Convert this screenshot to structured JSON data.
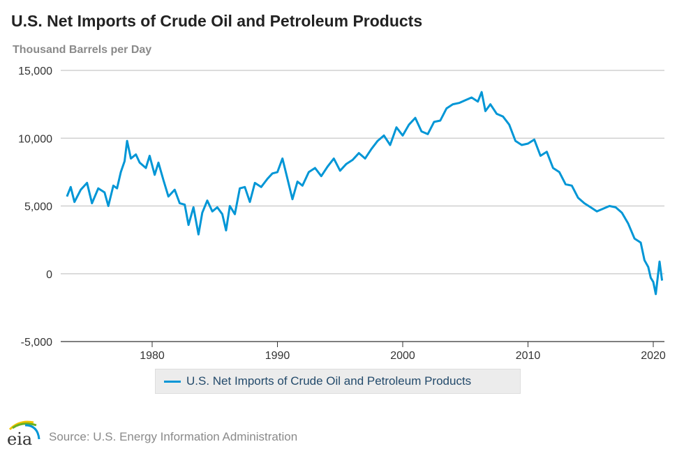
{
  "title": "U.S. Net Imports of Crude Oil and Petroleum Products",
  "source": "Source: U.S. Energy Information Administration",
  "logo_text": "eia",
  "chart_data": {
    "type": "line",
    "title": "U.S. Net Imports of Crude Oil and Petroleum Products",
    "ylabel": "Thousand Barrels per Day",
    "xlabel": "",
    "ylim": [
      -5000,
      15000
    ],
    "xlim": [
      1973,
      2021
    ],
    "yticks": [
      {
        "v": 15000,
        "label": "15,000"
      },
      {
        "v": 10000,
        "label": "10,000"
      },
      {
        "v": 5000,
        "label": "5,000"
      },
      {
        "v": 0,
        "label": "0"
      },
      {
        "v": -5000,
        "label": "-5,000"
      }
    ],
    "xticks": [
      {
        "v": 1980,
        "label": "1980"
      },
      {
        "v": 1990,
        "label": "1990"
      },
      {
        "v": 2000,
        "label": "2000"
      },
      {
        "v": 2010,
        "label": "2010"
      },
      {
        "v": 2020,
        "label": "2020"
      }
    ],
    "grid": true,
    "legend_position": "bottom",
    "color": "#0096d6",
    "series": [
      {
        "name": "U.S. Net Imports of Crude Oil and Petroleum Products",
        "x": [
          1973.2,
          1973.5,
          1973.8,
          1974.3,
          1974.8,
          1975.2,
          1975.7,
          1976.2,
          1976.5,
          1976.9,
          1977.2,
          1977.5,
          1977.8,
          1978,
          1978.3,
          1978.7,
          1979,
          1979.5,
          1979.8,
          1980.2,
          1980.5,
          1980.9,
          1981.3,
          1981.8,
          1982.2,
          1982.6,
          1982.9,
          1983.3,
          1983.7,
          1984,
          1984.4,
          1984.8,
          1985.2,
          1985.6,
          1985.9,
          1986.2,
          1986.6,
          1987,
          1987.4,
          1987.8,
          1988.2,
          1988.7,
          1989.2,
          1989.6,
          1990,
          1990.4,
          1990.8,
          1991.2,
          1991.6,
          1992,
          1992.5,
          1993,
          1993.5,
          1994,
          1994.5,
          1995,
          1995.5,
          1996,
          1996.5,
          1997,
          1997.5,
          1998,
          1998.5,
          1999,
          1999.5,
          2000,
          2000.5,
          2001,
          2001.5,
          2002,
          2002.5,
          2003,
          2003.5,
          2004,
          2004.5,
          2005,
          2005.5,
          2006,
          2006.3,
          2006.6,
          2007,
          2007.5,
          2008,
          2008.5,
          2009,
          2009.5,
          2010,
          2010.5,
          2011,
          2011.5,
          2012,
          2012.5,
          2013,
          2013.5,
          2014,
          2014.5,
          2015,
          2015.5,
          2016,
          2016.5,
          2017,
          2017.5,
          2018,
          2018.5,
          2019,
          2019.3,
          2019.6,
          2019.8,
          2020,
          2020.2,
          2020.5,
          2020.7
        ],
        "values": [
          5700,
          6400,
          5300,
          6200,
          6700,
          5200,
          6300,
          6000,
          5000,
          6500,
          6300,
          7500,
          8300,
          9800,
          8500,
          8800,
          8200,
          7800,
          8700,
          7300,
          8200,
          6900,
          5700,
          6200,
          5200,
          5100,
          3600,
          4900,
          2900,
          4500,
          5400,
          4600,
          4900,
          4400,
          3200,
          5000,
          4400,
          6300,
          6400,
          5300,
          6700,
          6400,
          7000,
          7400,
          7500,
          8500,
          7000,
          5500,
          6800,
          6500,
          7500,
          7800,
          7200,
          7900,
          8500,
          7600,
          8100,
          8400,
          8900,
          8500,
          9200,
          9800,
          10200,
          9500,
          10800,
          10200,
          11000,
          11500,
          10500,
          10300,
          11200,
          11300,
          12200,
          12500,
          12600,
          12800,
          13000,
          12700,
          13400,
          12000,
          12500,
          11800,
          11600,
          11000,
          9800,
          9500,
          9600,
          9900,
          8700,
          9000,
          7800,
          7500,
          6600,
          6500,
          5600,
          5200,
          4900,
          4600,
          4800,
          5000,
          4900,
          4500,
          3700,
          2600,
          2300,
          1000,
          500,
          -300,
          -600,
          -1500,
          900,
          -500
        ]
      }
    ]
  }
}
